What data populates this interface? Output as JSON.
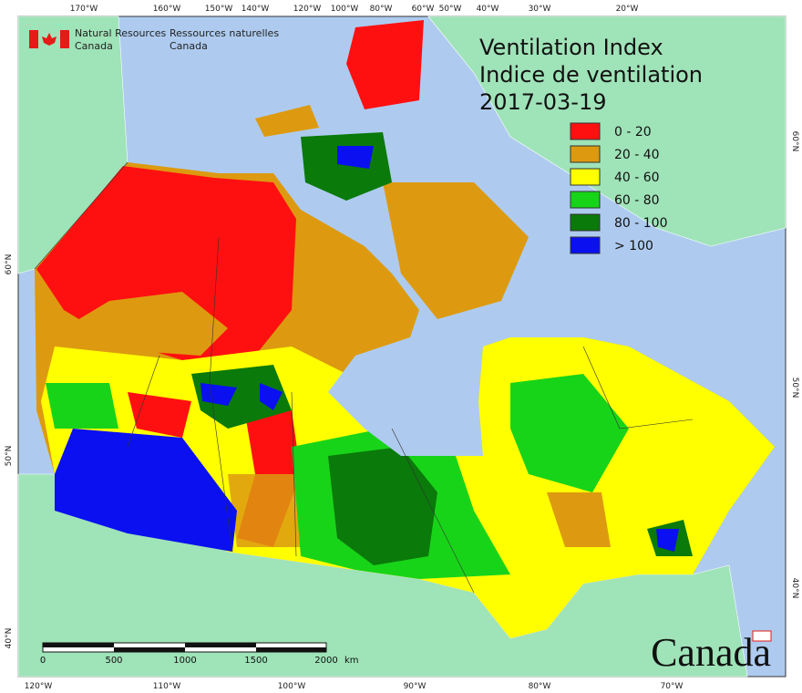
{
  "header": {
    "agency_en": "Natural Resources",
    "country_en": "Canada",
    "agency_fr": "Ressources naturelles",
    "country_fr": "Canada"
  },
  "title": {
    "line1": "Ventilation Index",
    "line2": "Indice de ventilation",
    "date": "2017-03-19"
  },
  "legend": [
    {
      "label": "0 - 20",
      "color": "#ff1010"
    },
    {
      "label": "20 - 40",
      "color": "#dd9a10"
    },
    {
      "label": "40 - 60",
      "color": "#ffff00"
    },
    {
      "label": "60 - 80",
      "color": "#18d418"
    },
    {
      "label": "80 - 100",
      "color": "#0a7a0a"
    },
    {
      "label": "> 100",
      "color": "#0a10f0"
    }
  ],
  "graticule": {
    "top": [
      "170°W",
      "160°W",
      "150°W",
      "140°W",
      "120°W",
      "100°W",
      "80°W",
      "60°W",
      "50°W",
      "40°W",
      "30°W",
      "20°W"
    ],
    "bottom": [
      "120°W",
      "110°W",
      "100°W",
      "90°W",
      "80°W",
      "70°W"
    ],
    "left": [
      "60°N",
      "50°N",
      "40°N"
    ],
    "right": [
      "60°N",
      "50°N",
      "40°N"
    ]
  },
  "scale_bar": {
    "labels": [
      "0",
      "500",
      "1000",
      "1500",
      "2000"
    ],
    "unit": "km"
  },
  "wordmark": "Canada"
}
